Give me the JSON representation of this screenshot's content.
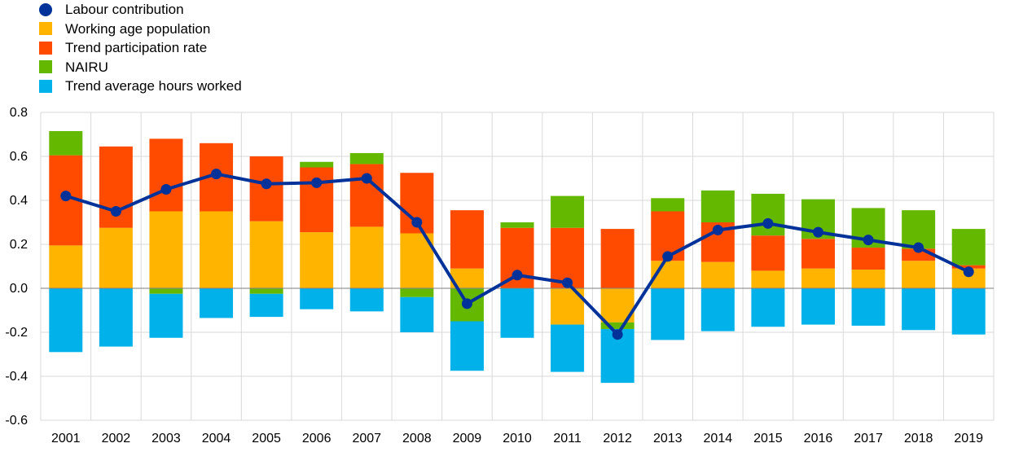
{
  "chart_data": {
    "type": "bar",
    "title": "",
    "xlabel": "",
    "ylabel": "",
    "ylim": [
      -0.6,
      0.8
    ],
    "yticks": [
      "0.8",
      "0.6",
      "0.4",
      "0.2",
      "0.0",
      "-0.2",
      "-0.4",
      "-0.6"
    ],
    "grid": true,
    "legend_position": "top-left",
    "categories": [
      "2001",
      "2002",
      "2003",
      "2004",
      "2005",
      "2006",
      "2007",
      "2008",
      "2009",
      "2010",
      "2011",
      "2012",
      "2013",
      "2014",
      "2015",
      "2016",
      "2017",
      "2018",
      "2019"
    ],
    "stacked_series": [
      {
        "name": "Working age population",
        "color": "#ffb400",
        "values": [
          0.195,
          0.275,
          0.35,
          0.35,
          0.305,
          0.255,
          0.28,
          0.25,
          0.09,
          0.0,
          -0.165,
          -0.155,
          0.125,
          0.12,
          0.08,
          0.09,
          0.085,
          0.125,
          0.09
        ]
      },
      {
        "name": "Trend participation rate",
        "color": "#ff4b00",
        "values": [
          0.41,
          0.37,
          0.33,
          0.31,
          0.295,
          0.295,
          0.285,
          0.275,
          0.265,
          0.275,
          0.275,
          0.27,
          0.225,
          0.18,
          0.16,
          0.135,
          0.1,
          0.055,
          0.015
        ]
      },
      {
        "name": "NAIRU",
        "color": "#65b800",
        "values": [
          0.11,
          0.0,
          -0.025,
          0.0,
          -0.025,
          0.025,
          0.05,
          -0.04,
          -0.15,
          0.025,
          0.145,
          -0.03,
          0.06,
          0.145,
          0.19,
          0.18,
          0.18,
          0.175,
          0.165
        ]
      },
      {
        "name": "Trend average hours worked",
        "color": "#00b1ea",
        "values": [
          -0.29,
          -0.265,
          -0.2,
          -0.135,
          -0.105,
          -0.095,
          -0.105,
          -0.16,
          -0.225,
          -0.225,
          -0.215,
          -0.245,
          -0.235,
          -0.195,
          -0.175,
          -0.165,
          -0.17,
          -0.19,
          -0.21
        ]
      }
    ],
    "line_series": {
      "name": "Labour contribution",
      "color": "#003299",
      "values": [
        0.42,
        0.35,
        0.45,
        0.52,
        0.475,
        0.48,
        0.5,
        0.3,
        -0.07,
        0.06,
        0.025,
        -0.21,
        0.145,
        0.265,
        0.295,
        0.255,
        0.22,
        0.185,
        0.075
      ]
    }
  }
}
